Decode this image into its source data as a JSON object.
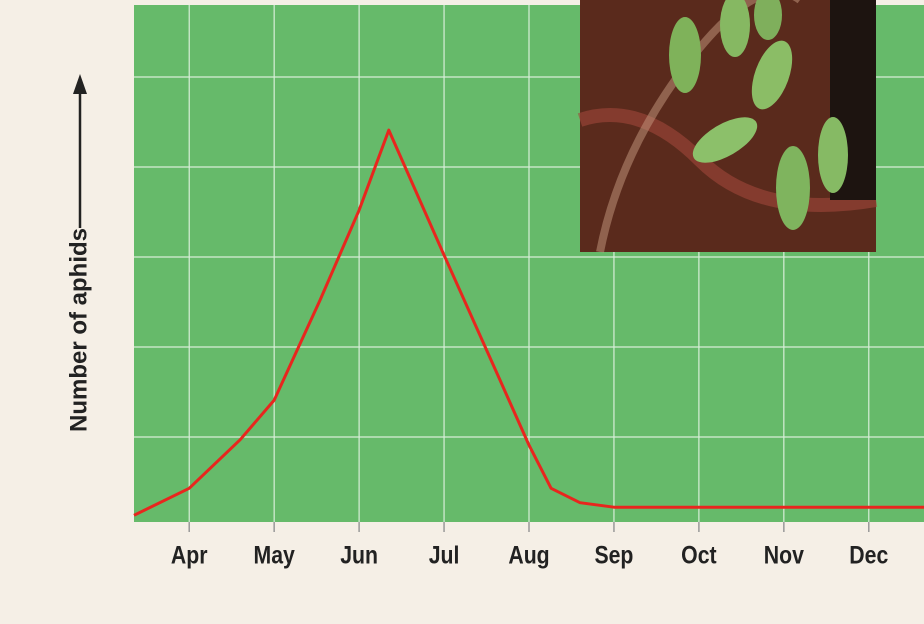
{
  "chart_data": {
    "type": "line",
    "y_label": "Number of aphids",
    "x": [
      3.35,
      4,
      4.6,
      5,
      5.54,
      6,
      6.35,
      7,
      7.66,
      8,
      8.26,
      8.6,
      9,
      12.65
    ],
    "values": [
      0.13,
      0.43,
      0.97,
      1.41,
      2.52,
      3.52,
      4.41,
      3.02,
      1.63,
      0.91,
      0.43,
      0.27,
      0.22,
      0.22
    ],
    "color": "#e8261e",
    "xlim": [
      3.35,
      12.65
    ],
    "xticks": [
      {
        "value": 4,
        "label": "Apr"
      },
      {
        "value": 5,
        "label": "May"
      },
      {
        "value": 6,
        "label": "Jun"
      },
      {
        "value": 7,
        "label": "Jul"
      },
      {
        "value": 8,
        "label": "Aug"
      },
      {
        "value": 9,
        "label": "Sep"
      },
      {
        "value": 10,
        "label": "Oct"
      },
      {
        "value": 11,
        "label": "Nov"
      },
      {
        "value": 12,
        "label": "Dec"
      }
    ],
    "ylim": [
      0,
      5.8
    ],
    "yticks": [
      1,
      2,
      3,
      4,
      5
    ],
    "grid": true
  }
}
